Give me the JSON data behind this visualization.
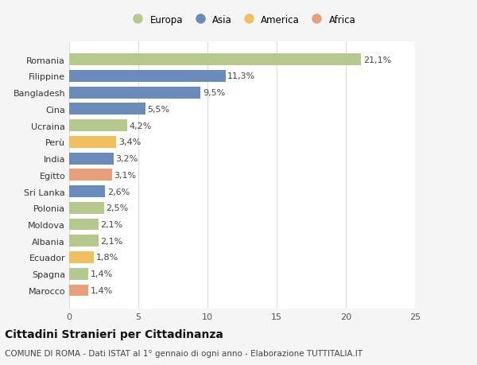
{
  "categories": [
    "Romania",
    "Filippine",
    "Bangladesh",
    "Cina",
    "Ucraina",
    "Perù",
    "India",
    "Egitto",
    "Sri Lanka",
    "Polonia",
    "Moldova",
    "Albania",
    "Ecuador",
    "Spagna",
    "Marocco"
  ],
  "values": [
    21.1,
    11.3,
    9.5,
    5.5,
    4.2,
    3.4,
    3.2,
    3.1,
    2.6,
    2.5,
    2.1,
    2.1,
    1.8,
    1.4,
    1.4
  ],
  "labels": [
    "21,1%",
    "11,3%",
    "9,5%",
    "5,5%",
    "4,2%",
    "3,4%",
    "3,2%",
    "3,1%",
    "2,6%",
    "2,5%",
    "2,1%",
    "2,1%",
    "1,8%",
    "1,4%",
    "1,4%"
  ],
  "continents": [
    "Europa",
    "Asia",
    "Asia",
    "Asia",
    "Europa",
    "America",
    "Asia",
    "Africa",
    "Asia",
    "Europa",
    "Europa",
    "Europa",
    "America",
    "Europa",
    "Africa"
  ],
  "continent_colors": {
    "Europa": "#b5c98e",
    "Asia": "#6b8cba",
    "America": "#f0c060",
    "Africa": "#e8a07a"
  },
  "legend_order": [
    "Europa",
    "Asia",
    "America",
    "Africa"
  ],
  "title": "Cittadini Stranieri per Cittadinanza",
  "subtitle": "COMUNE DI ROMA - Dati ISTAT al 1° gennaio di ogni anno - Elaborazione TUTTITALIA.IT",
  "xlim": [
    0,
    25
  ],
  "xticks": [
    0,
    5,
    10,
    15,
    20,
    25
  ],
  "plot_bg": "#ffffff",
  "fig_bg": "#f5f5f5",
  "grid_color": "#dddddd",
  "title_fontsize": 10,
  "subtitle_fontsize": 7.5,
  "label_fontsize": 8,
  "tick_fontsize": 8,
  "legend_fontsize": 8.5
}
